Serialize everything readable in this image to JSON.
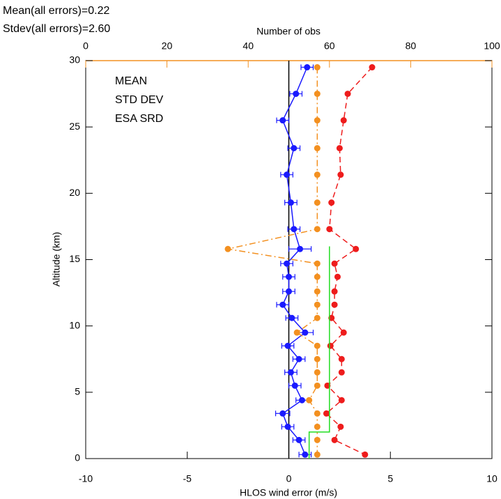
{
  "chart_data": {
    "type": "line",
    "stats": [
      "Mean(all errors)=0.22",
      "Stdev(all errors)=2.60"
    ],
    "xlabel": "HLOS wind error (m/s)",
    "ylabel": "Altitude (km)",
    "x2label": "Number of obs",
    "xlim": [
      -10,
      10
    ],
    "xticks": [
      -10,
      -5,
      0,
      5,
      10
    ],
    "ylim": [
      0,
      30
    ],
    "yticks": [
      0,
      5,
      10,
      15,
      20,
      25,
      30
    ],
    "x2lim": [
      0,
      100
    ],
    "x2ticks": [
      0,
      20,
      40,
      60,
      80,
      100
    ],
    "x2color": "#f39020",
    "legend": "upper left",
    "y": [
      29.5,
      27.5,
      25.5,
      23.4,
      21.4,
      19.3,
      17.3,
      15.8,
      14.7,
      13.7,
      12.6,
      11.6,
      10.6,
      9.5,
      8.5,
      7.5,
      6.5,
      5.5,
      4.4,
      3.4,
      2.4,
      1.4,
      0.3
    ],
    "series": [
      {
        "name": "MEAN",
        "color": "#1a1aff",
        "dash": "solid",
        "marker": true,
        "values": [
          0.9,
          0.35,
          -0.3,
          0.25,
          -0.1,
          0.1,
          0.25,
          0.55,
          -0.1,
          0,
          0,
          -0.3,
          0.15,
          0.8,
          -0.05,
          0.5,
          0.1,
          0.3,
          0.65,
          -0.3,
          -0.05,
          0.5,
          0.8
        ],
        "errors": [
          0.3,
          0.3,
          0.3,
          0.3,
          0.3,
          0.3,
          0.3,
          0.55,
          0.3,
          0.3,
          0.3,
          0.3,
          0.3,
          0.4,
          0.3,
          0.3,
          0.3,
          0.3,
          0.3,
          0.35,
          0.3,
          0.3,
          0.3
        ]
      },
      {
        "name": "STD DEV",
        "color": "#ee1c1c",
        "dash": "dashed",
        "marker": true,
        "values": [
          4.1,
          2.9,
          2.7,
          2.5,
          2.55,
          2.1,
          2.0,
          3.3,
          2.25,
          2.4,
          2.25,
          2.25,
          2.1,
          2.7,
          2.05,
          2.6,
          2.6,
          1.9,
          2.6,
          1.85,
          2.55,
          2.25,
          3.75
        ]
      },
      {
        "name": "ESA SRD",
        "color": "#22dd22",
        "dash": "solid",
        "marker": false,
        "values": [
          1,
          1,
          2,
          2
        ],
        "y": [
          0,
          2,
          2,
          16
        ]
      },
      {
        "color": "#f39020",
        "dash": "dashdot",
        "marker": true,
        "axis": "x2",
        "values": [
          57,
          57,
          57,
          57,
          57,
          57,
          57,
          35,
          57,
          57,
          57,
          57,
          57,
          52,
          57,
          57,
          57,
          57,
          55,
          57,
          57,
          57,
          57
        ]
      }
    ]
  }
}
